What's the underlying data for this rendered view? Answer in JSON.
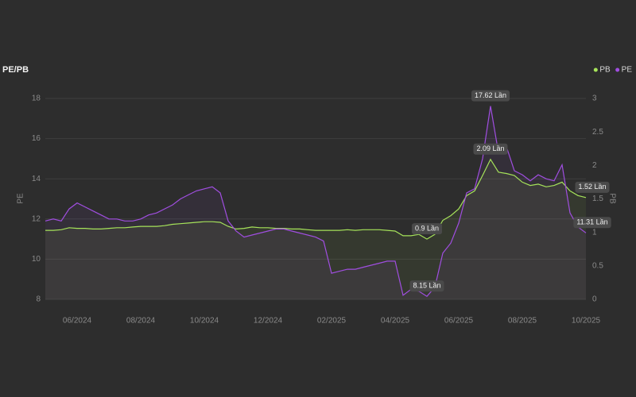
{
  "chart_data": {
    "type": "line",
    "title": "PE/PB",
    "y_label": "PE",
    "y2_label": "PB",
    "categories": [
      null,
      null,
      null,
      null,
      "06/2024",
      null,
      null,
      null,
      null,
      null,
      null,
      null,
      "08/2024",
      null,
      null,
      null,
      null,
      null,
      null,
      null,
      "10/2024",
      null,
      null,
      null,
      null,
      null,
      null,
      null,
      "12/2024",
      null,
      null,
      null,
      null,
      null,
      null,
      null,
      "02/2025",
      null,
      null,
      null,
      null,
      null,
      null,
      null,
      "04/2025",
      null,
      null,
      null,
      null,
      null,
      null,
      null,
      "06/2025",
      null,
      null,
      null,
      null,
      null,
      null,
      null,
      "08/2025",
      null,
      null,
      null,
      null,
      null,
      null,
      null,
      "10/2025"
    ],
    "ylim": [
      8,
      18
    ],
    "yticks": [
      8,
      10,
      12,
      14,
      16,
      18
    ],
    "y2lim": [
      0,
      3
    ],
    "y2ticks": [
      0,
      0.5,
      1,
      1.5,
      2,
      2.5,
      3
    ],
    "grid": true,
    "legend": "top-right",
    "series": [
      {
        "name": "PB",
        "color": "#a6e35a",
        "axis": "y2",
        "values": [
          1.03,
          1.03,
          1.04,
          1.07,
          1.06,
          1.06,
          1.05,
          1.05,
          1.06,
          1.07,
          1.07,
          1.08,
          1.09,
          1.09,
          1.09,
          1.1,
          1.12,
          1.13,
          1.14,
          1.15,
          1.16,
          1.16,
          1.15,
          1.09,
          1.05,
          1.06,
          1.08,
          1.07,
          1.07,
          1.06,
          1.06,
          1.05,
          1.05,
          1.04,
          1.03,
          1.03,
          1.03,
          1.03,
          1.04,
          1.03,
          1.04,
          1.04,
          1.04,
          1.03,
          1.02,
          0.95,
          0.95,
          0.97,
          0.9,
          0.97,
          1.18,
          1.25,
          1.35,
          1.55,
          1.62,
          1.85,
          2.09,
          1.9,
          1.88,
          1.85,
          1.75,
          1.7,
          1.72,
          1.68,
          1.7,
          1.75,
          1.62,
          1.55,
          1.52
        ],
        "value_labels": [
          null,
          null,
          null,
          null,
          null,
          null,
          null,
          null,
          null,
          null,
          null,
          null,
          null,
          null,
          null,
          null,
          null,
          null,
          null,
          null,
          null,
          null,
          null,
          null,
          null,
          null,
          null,
          null,
          null,
          null,
          null,
          null,
          null,
          null,
          null,
          null,
          null,
          null,
          null,
          null,
          null,
          null,
          null,
          null,
          null,
          null,
          null,
          null,
          "0.9 Lần",
          null,
          null,
          null,
          null,
          null,
          null,
          null,
          "2.09 Lần",
          null,
          null,
          null,
          null,
          null,
          null,
          null,
          null,
          null,
          null,
          null,
          "1.52 Lần"
        ]
      },
      {
        "name": "PE",
        "color": "#a04ee0",
        "axis": "y",
        "values": [
          11.9,
          12.0,
          11.9,
          12.5,
          12.8,
          12.6,
          12.4,
          12.2,
          12.0,
          12.0,
          11.9,
          11.9,
          12.0,
          12.2,
          12.3,
          12.5,
          12.7,
          13.0,
          13.2,
          13.4,
          13.5,
          13.6,
          13.3,
          11.9,
          11.4,
          11.1,
          11.2,
          11.3,
          11.4,
          11.5,
          11.5,
          11.4,
          11.3,
          11.2,
          11.1,
          10.9,
          9.3,
          9.4,
          9.5,
          9.5,
          9.6,
          9.7,
          9.8,
          9.9,
          9.9,
          8.2,
          8.5,
          8.4,
          8.15,
          8.6,
          10.3,
          10.8,
          11.8,
          13.3,
          13.5,
          15.0,
          17.62,
          15.3,
          15.6,
          14.4,
          14.2,
          13.9,
          14.2,
          14.0,
          13.9,
          14.7,
          12.3,
          11.6,
          11.31
        ],
        "value_labels": [
          null,
          null,
          null,
          null,
          null,
          null,
          null,
          null,
          null,
          null,
          null,
          null,
          null,
          null,
          null,
          null,
          null,
          null,
          null,
          null,
          null,
          null,
          null,
          null,
          null,
          null,
          null,
          null,
          null,
          null,
          null,
          null,
          null,
          null,
          null,
          null,
          null,
          null,
          null,
          null,
          null,
          null,
          null,
          null,
          null,
          null,
          null,
          null,
          "8.15 Lần",
          null,
          null,
          null,
          null,
          null,
          null,
          null,
          "17.62 Lần",
          null,
          null,
          null,
          null,
          null,
          null,
          null,
          null,
          null,
          null,
          null,
          "11.31 Lần"
        ]
      }
    ]
  }
}
